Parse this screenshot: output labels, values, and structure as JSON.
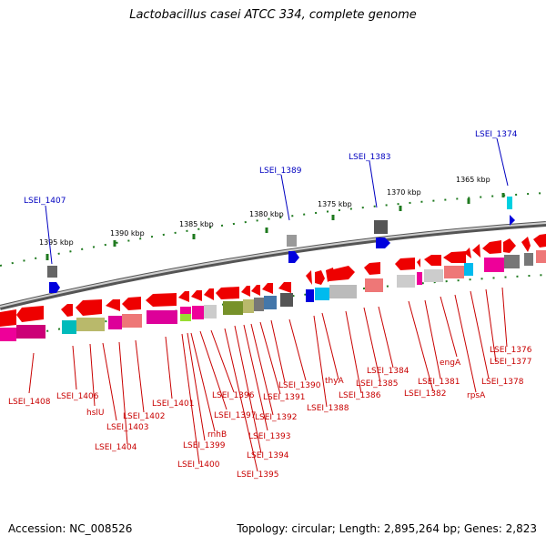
{
  "header": {
    "title": "Lactobacillus casei ATCC 334, complete genome"
  },
  "footer": {
    "accession": "Accession: NC_008526",
    "summary": "Topology: circular; Length: 2,895,264 bp; Genes: 2,823"
  },
  "colors": {
    "gene_label": "#c80000",
    "highlight_label": "#0000c0",
    "forward_gene": "#ee0000",
    "scale_tick": "#1f7a1f",
    "backbone": "#7a7a7a"
  },
  "scale_labels": [
    "1395 kbp",
    "1390 kbp",
    "1385 kbp",
    "1380 kbp",
    "1375 kbp",
    "1370 kbp",
    "1365 kbp"
  ],
  "highlight_labels": [
    "LSEI_1407",
    "LSEI_1389",
    "LSEI_1383",
    "LSEI_1374"
  ],
  "gene_labels": [
    "LSEI_1408",
    "LSEI_1406",
    "hslU",
    "LSEI_1403",
    "LSEI_1404",
    "LSEI_1402",
    "LSEI_1401",
    "rnhB",
    "LSEI_1399",
    "LSEI_1400",
    "LSEI_1397",
    "LSEI_1396",
    "LSEI_1395",
    "LSEI_1394",
    "LSEI_1393",
    "LSEI_1392",
    "LSEI_1391",
    "LSEI_1390",
    "LSEI_1388",
    "thyA",
    "LSEI_1386",
    "LSEI_1385",
    "LSEI_1384",
    "LSEI_1382",
    "LSEI_1381",
    "engA",
    "rpsA",
    "LSEI_1378",
    "LSEI_1377",
    "LSEI_1376"
  ]
}
